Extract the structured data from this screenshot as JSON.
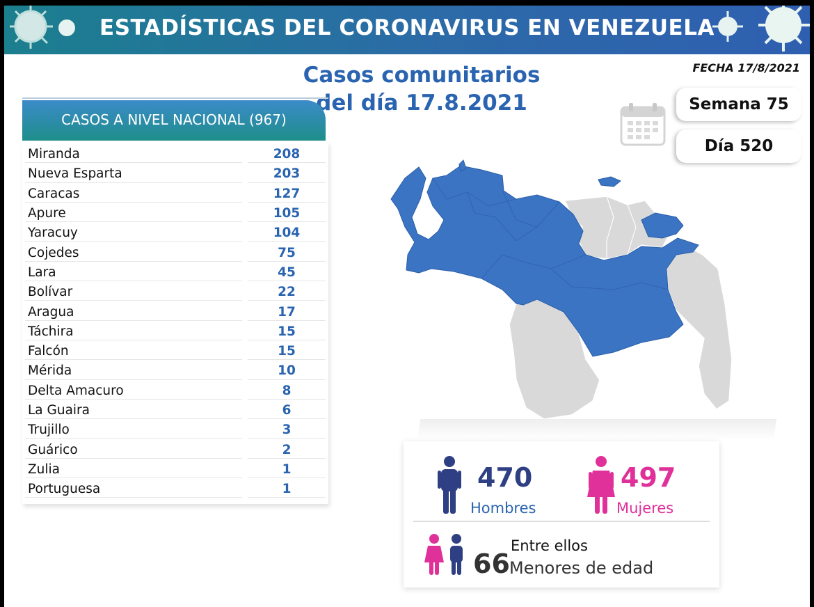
{
  "header": {
    "title": "ESTADÍSTICAS DEL CORONAVIRUS EN VENEZUELA"
  },
  "heading": {
    "line1": "Casos comunitarios",
    "line2": "del día 17.8.2021"
  },
  "fecha": "FECHA 17/8/2021",
  "national": {
    "label": "CASOS A NIVEL NACIONAL (967)"
  },
  "states": [
    {
      "name": "Miranda",
      "value": "208"
    },
    {
      "name": "Nueva Esparta",
      "value": "203"
    },
    {
      "name": "Caracas",
      "value": "127"
    },
    {
      "name": "Apure",
      "value": "105"
    },
    {
      "name": "Yaracuy",
      "value": "104"
    },
    {
      "name": "Cojedes",
      "value": "75"
    },
    {
      "name": "Lara",
      "value": "45"
    },
    {
      "name": "Bolívar",
      "value": "22"
    },
    {
      "name": "Aragua",
      "value": "17"
    },
    {
      "name": "Táchira",
      "value": "15"
    },
    {
      "name": "Falcón",
      "value": "15"
    },
    {
      "name": "Mérida",
      "value": "10"
    },
    {
      "name": "Delta Amacuro",
      "value": "8"
    },
    {
      "name": "La Guaira",
      "value": "6"
    },
    {
      "name": "Trujillo",
      "value": "3"
    },
    {
      "name": "Guárico",
      "value": "2"
    },
    {
      "name": "Zulia",
      "value": "1"
    },
    {
      "name": "Portuguesa",
      "value": "1"
    }
  ],
  "semana": "Semana 75",
  "dia": "Día 520",
  "stats": {
    "hombres_value": "470",
    "hombres_label": "Hombres",
    "mujeres_value": "497",
    "mujeres_label": "Mujeres",
    "menores_prefix": "Entre ellos",
    "menores_value": "66",
    "menores_label": "Menores de edad"
  },
  "colors": {
    "blue": "#2a64b0",
    "pink": "#e0309a",
    "map_blue": "#3c74c4",
    "map_gray": "#d9d9d9"
  }
}
